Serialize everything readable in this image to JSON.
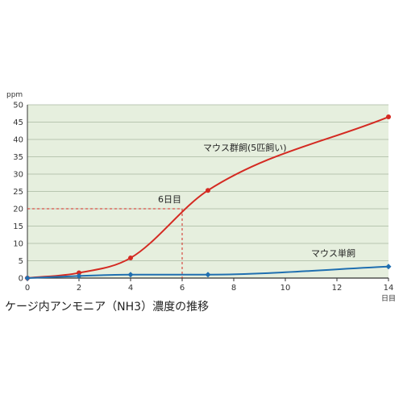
{
  "chart_data": {
    "type": "line",
    "title": "ケージ内アンモニア（NH3）濃度の推移",
    "ylabel": "ppm",
    "xlabel": "日目",
    "xlim": [
      0,
      14
    ],
    "ylim": [
      0,
      50
    ],
    "x_ticks": [
      0,
      2,
      4,
      6,
      8,
      10,
      12,
      14
    ],
    "y_ticks": [
      0,
      5,
      10,
      15,
      20,
      25,
      30,
      35,
      40,
      45,
      50
    ],
    "grid": true,
    "series": [
      {
        "name": "マウス群飼(5匹飼い)",
        "color": "#d42a22",
        "marker": "circle",
        "points": [
          [
            0,
            0
          ],
          [
            2,
            1.5
          ],
          [
            4,
            5.8
          ],
          [
            7,
            25.3
          ],
          [
            14,
            46.5
          ]
        ]
      },
      {
        "name": "マウス単飼",
        "color": "#1f6fb0",
        "marker": "diamond",
        "points": [
          [
            0,
            0
          ],
          [
            2,
            0.6
          ],
          [
            4,
            1.0
          ],
          [
            7,
            1.0
          ],
          [
            14,
            3.3
          ]
        ]
      }
    ],
    "annotations": [
      {
        "text": "6日目",
        "x": 6,
        "y": 20,
        "color": "#d42a22"
      }
    ]
  }
}
